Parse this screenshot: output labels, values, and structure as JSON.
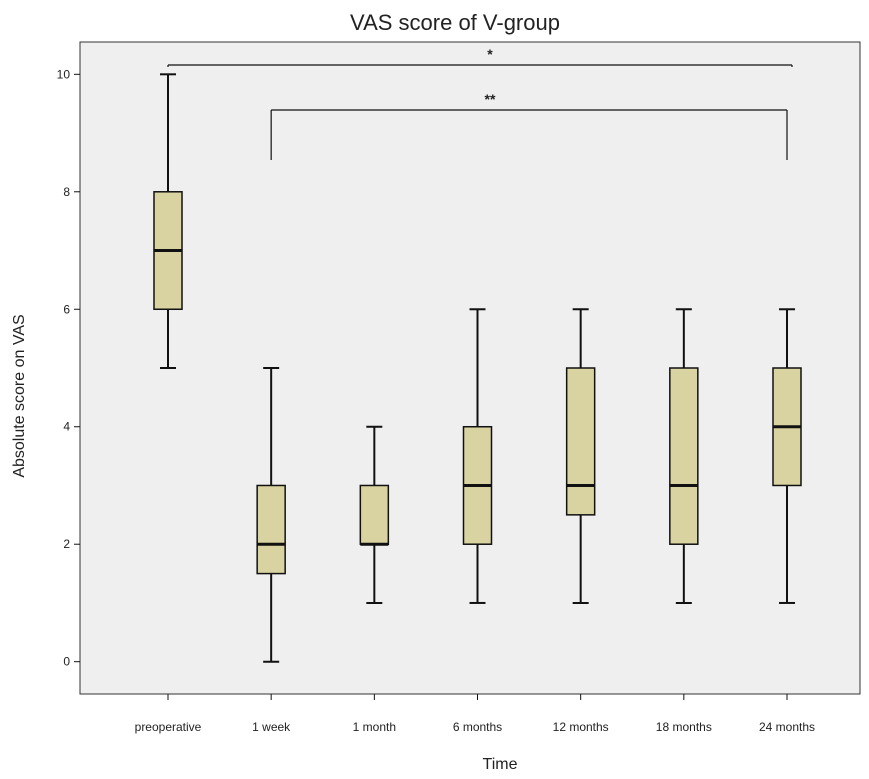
{
  "chart_data": {
    "type": "box",
    "title": "VAS score of V-group",
    "xlabel": "Time",
    "ylabel": "Absolute score on VAS",
    "ylim": [
      -0.55,
      10.55
    ],
    "yticks": [
      0,
      2,
      4,
      6,
      8,
      10
    ],
    "ytick_labels": [
      "0",
      "2",
      "4",
      "6",
      "8",
      "10"
    ],
    "categories": [
      "preoperative",
      "1 week",
      "1 month",
      "6 months",
      "12 months",
      "18 months",
      "24 months"
    ],
    "boxes": [
      {
        "min": 5,
        "q1": 6,
        "median": 7,
        "q3": 8,
        "max": 10
      },
      {
        "min": 0,
        "q1": 1.5,
        "median": 2,
        "q3": 3,
        "max": 5
      },
      {
        "min": 1,
        "q1": 2,
        "median": 2,
        "q3": 3,
        "max": 4
      },
      {
        "min": 1,
        "q1": 2,
        "median": 3,
        "q3": 4,
        "max": 6
      },
      {
        "min": 1,
        "q1": 2.5,
        "median": 3,
        "q3": 5,
        "max": 6
      },
      {
        "min": 1,
        "q1": 2,
        "median": 3,
        "q3": 5,
        "max": 6
      },
      {
        "min": 1,
        "q1": 3,
        "median": 4,
        "q3": 5,
        "max": 6
      }
    ],
    "significance": [
      {
        "from": "preoperative",
        "to": "24 months",
        "label": "*"
      },
      {
        "from": "1 week",
        "to": "24 months",
        "label": "**"
      }
    ],
    "grid": false,
    "colors": {
      "box_fill": "#d8d3a0",
      "plot_background": "#efefef",
      "line": "#111111"
    }
  }
}
